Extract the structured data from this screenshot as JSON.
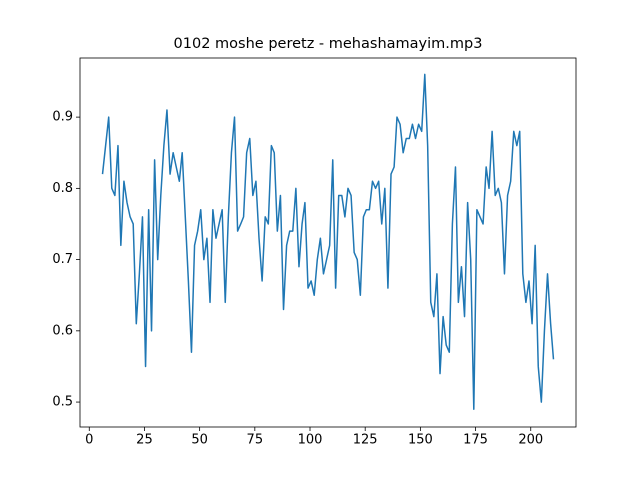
{
  "chart_data": {
    "type": "line",
    "title": "0102 moshe peretz - mehashamayim.mp3",
    "color": "#1f77b4",
    "x": [
      6.0,
      7.4,
      8.8,
      10.2,
      11.6,
      13.0,
      14.3,
      15.7,
      17.1,
      18.5,
      19.9,
      21.3,
      22.7,
      24.1,
      25.5,
      26.9,
      28.2,
      29.6,
      31.0,
      32.4,
      33.8,
      35.2,
      36.6,
      38.0,
      39.4,
      40.8,
      42.1,
      43.5,
      44.9,
      46.3,
      47.7,
      49.1,
      50.5,
      51.9,
      53.3,
      54.7,
      56.0,
      57.4,
      58.8,
      60.2,
      61.6,
      63.0,
      64.4,
      65.8,
      67.2,
      68.6,
      69.9,
      71.3,
      72.7,
      74.1,
      75.5,
      76.9,
      78.3,
      79.7,
      81.1,
      82.5,
      83.8,
      85.2,
      86.6,
      88.0,
      89.4,
      90.8,
      92.2,
      93.6,
      95.0,
      96.4,
      97.7,
      99.1,
      100.5,
      101.9,
      103.3,
      104.7,
      106.1,
      107.5,
      108.9,
      110.3,
      111.6,
      113.0,
      114.4,
      115.8,
      117.2,
      118.6,
      120.0,
      121.4,
      122.8,
      124.2,
      125.5,
      126.9,
      128.3,
      129.7,
      131.1,
      132.5,
      133.9,
      135.3,
      136.7,
      138.1,
      139.4,
      140.8,
      142.2,
      143.6,
      145.0,
      146.4,
      147.8,
      149.2,
      150.6,
      152.0,
      153.3,
      154.7,
      156.1,
      157.5,
      158.9,
      160.3,
      161.7,
      163.1,
      164.5,
      165.9,
      167.2,
      168.6,
      170.0,
      171.4,
      172.8,
      174.2,
      175.6,
      177.0,
      178.4,
      179.8,
      181.1,
      182.5,
      183.9,
      185.3,
      186.7,
      188.1,
      189.5,
      190.9,
      192.3,
      193.7,
      195.0,
      196.4,
      197.8,
      199.2,
      200.6,
      202.0,
      203.4,
      204.8,
      206.2,
      207.6,
      209.0,
      210.3
    ],
    "y": [
      0.82,
      0.86,
      0.9,
      0.8,
      0.79,
      0.86,
      0.72,
      0.81,
      0.78,
      0.76,
      0.75,
      0.61,
      0.68,
      0.76,
      0.55,
      0.77,
      0.6,
      0.84,
      0.7,
      0.79,
      0.86,
      0.91,
      0.82,
      0.85,
      0.83,
      0.81,
      0.85,
      0.76,
      0.67,
      0.57,
      0.72,
      0.74,
      0.77,
      0.7,
      0.73,
      0.64,
      0.77,
      0.73,
      0.75,
      0.77,
      0.64,
      0.76,
      0.85,
      0.9,
      0.74,
      0.75,
      0.76,
      0.85,
      0.87,
      0.79,
      0.81,
      0.73,
      0.67,
      0.76,
      0.75,
      0.86,
      0.85,
      0.74,
      0.79,
      0.63,
      0.72,
      0.74,
      0.74,
      0.8,
      0.69,
      0.75,
      0.78,
      0.66,
      0.67,
      0.65,
      0.7,
      0.73,
      0.68,
      0.7,
      0.72,
      0.84,
      0.66,
      0.79,
      0.79,
      0.76,
      0.8,
      0.79,
      0.71,
      0.7,
      0.65,
      0.76,
      0.77,
      0.77,
      0.81,
      0.8,
      0.81,
      0.75,
      0.8,
      0.66,
      0.82,
      0.83,
      0.9,
      0.89,
      0.85,
      0.87,
      0.87,
      0.89,
      0.87,
      0.89,
      0.88,
      0.96,
      0.86,
      0.64,
      0.62,
      0.68,
      0.54,
      0.62,
      0.58,
      0.57,
      0.75,
      0.83,
      0.64,
      0.69,
      0.62,
      0.78,
      0.7,
      0.49,
      0.77,
      0.76,
      0.75,
      0.83,
      0.8,
      0.88,
      0.79,
      0.8,
      0.78,
      0.68,
      0.79,
      0.81,
      0.88,
      0.86,
      0.88,
      0.68,
      0.64,
      0.67,
      0.61,
      0.72,
      0.55,
      0.5,
      0.6,
      0.68,
      0.61,
      0.56
    ],
    "xlim": [
      -4.2,
      220.5
    ],
    "ylim": [
      0.465,
      0.983
    ],
    "xticks": [
      0,
      25,
      50,
      75,
      100,
      125,
      150,
      175,
      200
    ],
    "yticks": [
      0.5,
      0.6,
      0.7,
      0.8,
      0.9
    ]
  }
}
